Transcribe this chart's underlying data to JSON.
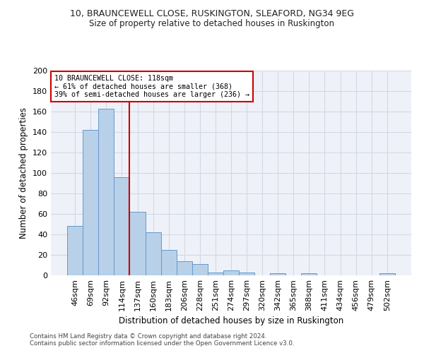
{
  "title1": "10, BRAUNCEWELL CLOSE, RUSKINGTON, SLEAFORD, NG34 9EG",
  "title2": "Size of property relative to detached houses in Ruskington",
  "xlabel": "Distribution of detached houses by size in Ruskington",
  "ylabel": "Number of detached properties",
  "bar_labels": [
    "46sqm",
    "69sqm",
    "92sqm",
    "114sqm",
    "137sqm",
    "160sqm",
    "183sqm",
    "206sqm",
    "228sqm",
    "251sqm",
    "274sqm",
    "297sqm",
    "320sqm",
    "342sqm",
    "365sqm",
    "388sqm",
    "411sqm",
    "434sqm",
    "456sqm",
    "479sqm",
    "502sqm"
  ],
  "bar_values": [
    48,
    142,
    163,
    96,
    62,
    42,
    25,
    14,
    11,
    3,
    5,
    3,
    0,
    2,
    0,
    2,
    0,
    0,
    0,
    0,
    2
  ],
  "bar_color": "#b8d0e8",
  "bar_edge_color": "#6699cc",
  "property_line_x": 3.5,
  "annotation_text": "10 BRAUNCEWELL CLOSE: 118sqm\n← 61% of detached houses are smaller (368)\n39% of semi-detached houses are larger (236) →",
  "annotation_box_color": "#ffffff",
  "annotation_box_edge_color": "#cc0000",
  "line_color": "#cc0000",
  "ylim": [
    0,
    200
  ],
  "yticks": [
    0,
    20,
    40,
    60,
    80,
    100,
    120,
    140,
    160,
    180,
    200
  ],
  "grid_color": "#d0d8e8",
  "background_color": "#eef2f8",
  "footer1": "Contains HM Land Registry data © Crown copyright and database right 2024.",
  "footer2": "Contains public sector information licensed under the Open Government Licence v3.0."
}
